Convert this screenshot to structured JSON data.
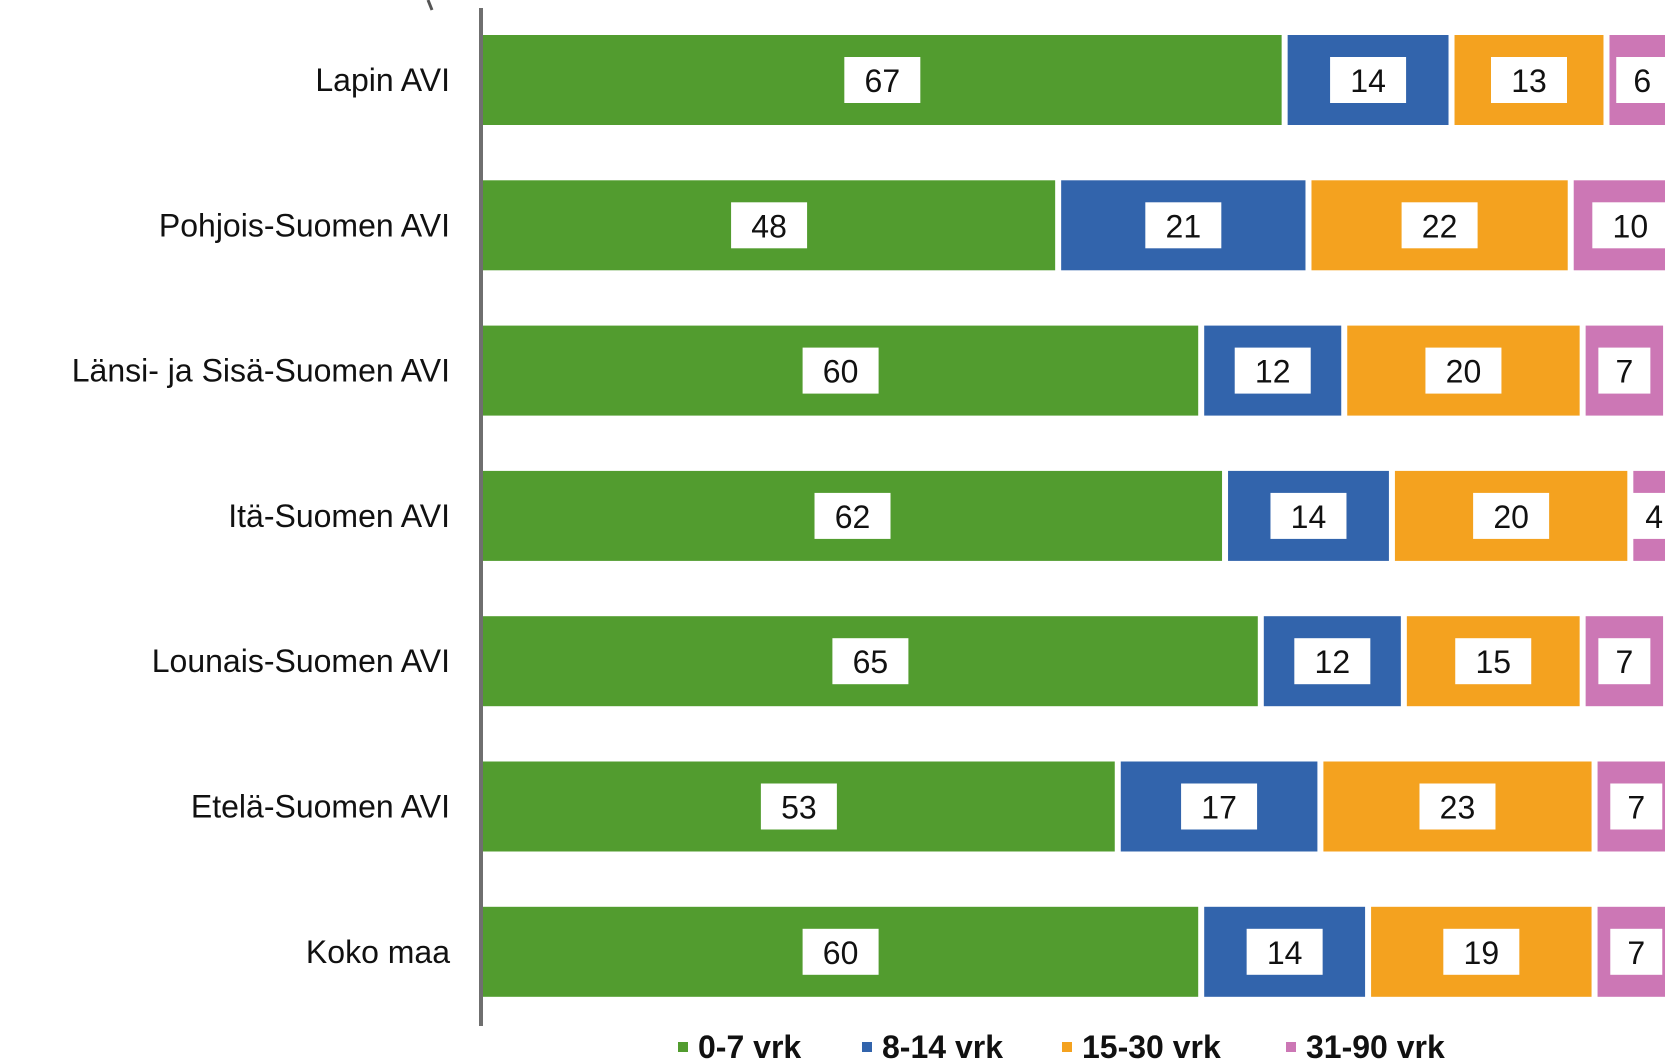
{
  "chart_data": {
    "type": "bar",
    "orientation": "horizontal",
    "stacked": true,
    "categories": [
      "Lapin AVI",
      "Pohjois-Suomen AVI",
      "Länsi- ja Sisä-Suomen AVI",
      "Itä-Suomen AVI",
      "Lounais-Suomen AVI",
      "Etelä-Suomen AVI",
      "Koko maa"
    ],
    "series": [
      {
        "name": "0-7 vrk",
        "color": "#529c2f",
        "values": [
          67,
          48,
          60,
          62,
          65,
          53,
          60
        ]
      },
      {
        "name": "8-14 vrk",
        "color": "#3264ac",
        "values": [
          14,
          21,
          12,
          14,
          12,
          17,
          14
        ]
      },
      {
        "name": "15-30 vrk",
        "color": "#f4a21f",
        "values": [
          13,
          22,
          20,
          20,
          15,
          23,
          19
        ]
      },
      {
        "name": "31-90 vrk",
        "color": "#cc77b5",
        "values": [
          6,
          10,
          7,
          4,
          7,
          7,
          7
        ]
      }
    ],
    "xlim": [
      0,
      100
    ],
    "grid": false,
    "legend_position": "bottom",
    "title": "",
    "xlabel": "",
    "ylabel": ""
  }
}
